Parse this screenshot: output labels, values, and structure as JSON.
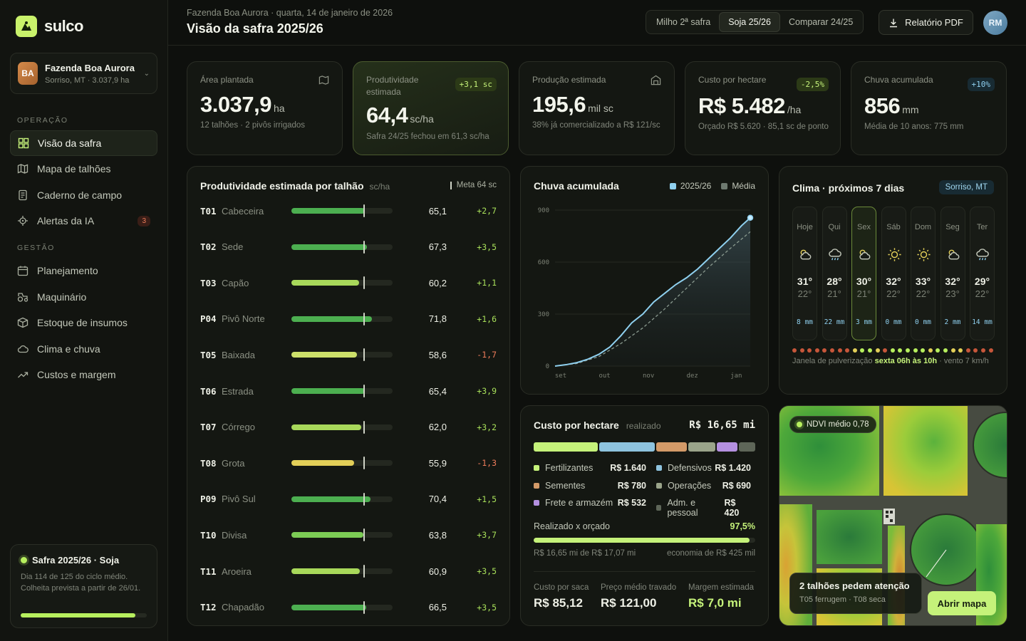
{
  "brand": {
    "name": "sulco"
  },
  "farm": {
    "initials": "BA",
    "name": "Fazenda Boa Aurora",
    "sub": "Sorriso, MT · 3.037,9 ha"
  },
  "nav": {
    "section_ops": "OPERAÇÃO",
    "section_mgmt": "GESTÃO",
    "items": [
      {
        "label": "Visão da safra",
        "icon": "grid-icon"
      },
      {
        "label": "Mapa de talhões",
        "icon": "map-icon"
      },
      {
        "label": "Caderno de campo",
        "icon": "notebook-icon"
      },
      {
        "label": "Alertas da IA",
        "icon": "target-icon",
        "badge": "3"
      },
      {
        "label": "Planejamento",
        "icon": "calendar-icon"
      },
      {
        "label": "Maquinário",
        "icon": "tractor-icon"
      },
      {
        "label": "Estoque de insumos",
        "icon": "box-icon"
      },
      {
        "label": "Clima e chuva",
        "icon": "cloud-icon"
      },
      {
        "label": "Custos e margem",
        "icon": "trend-icon"
      }
    ]
  },
  "season": {
    "title": "Safra 2025/26 · Soja",
    "line1": "Dia 114 de 125 do ciclo médio.",
    "line2": "Colheita prevista a partir de 26/01.",
    "progress": 0.912
  },
  "header": {
    "crumb": "Fazenda Boa Aurora · quarta, 14 de janeiro de 2026",
    "title": "Visão da safra 2025/26",
    "tabs": [
      "Milho 2ª safra",
      "Soja 25/26",
      "Comparar 24/25"
    ],
    "active_tab": 1,
    "pdf_label": "Relatório PDF",
    "user_initials": "RM"
  },
  "kpis": [
    {
      "label": "Área plantada",
      "value": "3.037,9",
      "unit": "ha",
      "note": "12 talhões · 2 pivôs irrigados",
      "icon": "map-icon"
    },
    {
      "label": "Produtividade estimada",
      "value": "64,4",
      "unit": "sc/ha",
      "note": "Safra 24/25 fechou em 61,3 sc/ha",
      "badge": "+3,1 sc"
    },
    {
      "label": "Produção estimada",
      "value": "195,6",
      "unit": "mil sc",
      "note": "38% já comercializado a R$ 121/sc",
      "icon": "warehouse-icon"
    },
    {
      "label": "Custo por hectare",
      "value": "R$ 5.482",
      "unit": "/ha",
      "note": "Orçado R$ 5.620 · 85,1 sc de ponto",
      "badge": "-2,5%"
    },
    {
      "label": "Chuva acumulada",
      "value": "856",
      "unit": "mm",
      "note": "Média de 10 anos: 775 mm",
      "badge": "+10%"
    }
  ],
  "productivity": {
    "title": "Produtividade estimada por talhão",
    "unit": "sc/ha",
    "meta_label": "Meta 64 sc",
    "meta": 64,
    "scale_max": 90,
    "rows": [
      {
        "code": "T01",
        "name": "Cabeceira",
        "value": "65,1",
        "num": 65.1,
        "delta": "+2,7",
        "color": "#4caf50"
      },
      {
        "code": "T02",
        "name": "Sede",
        "value": "67,3",
        "num": 67.3,
        "delta": "+3,5",
        "color": "#4caf50"
      },
      {
        "code": "T03",
        "name": "Capão",
        "value": "60,2",
        "num": 60.2,
        "delta": "+1,1",
        "color": "#a8d85a"
      },
      {
        "code": "P04",
        "name": "Pivô Norte",
        "value": "71,8",
        "num": 71.8,
        "delta": "+1,6",
        "color": "#4caf50"
      },
      {
        "code": "T05",
        "name": "Baixada",
        "value": "58,6",
        "num": 58.6,
        "delta": "-1,7",
        "color": "#cde06a"
      },
      {
        "code": "T06",
        "name": "Estrada",
        "value": "65,4",
        "num": 65.4,
        "delta": "+3,9",
        "color": "#4caf50"
      },
      {
        "code": "T07",
        "name": "Córrego",
        "value": "62,0",
        "num": 62.0,
        "delta": "+3,2",
        "color": "#a8d85a"
      },
      {
        "code": "T08",
        "name": "Grota",
        "value": "55,9",
        "num": 55.9,
        "delta": "-1,3",
        "color": "#e3cf58"
      },
      {
        "code": "P09",
        "name": "Pivô Sul",
        "value": "70,4",
        "num": 70.4,
        "delta": "+1,5",
        "color": "#4caf50"
      },
      {
        "code": "T10",
        "name": "Divisa",
        "value": "63,8",
        "num": 63.8,
        "delta": "+3,7",
        "color": "#7ccc55"
      },
      {
        "code": "T11",
        "name": "Aroeira",
        "value": "60,9",
        "num": 60.9,
        "delta": "+3,5",
        "color": "#a8d85a"
      },
      {
        "code": "T12",
        "name": "Chapadão",
        "value": "66,5",
        "num": 66.5,
        "delta": "+3,5",
        "color": "#4caf50"
      }
    ]
  },
  "chart_data": {
    "type": "area",
    "title": "Chuva acumulada",
    "legend": [
      "2025/26",
      "Média"
    ],
    "x_labels": [
      "set",
      "out",
      "nov",
      "dez",
      "jan"
    ],
    "y_ticks": [
      "900",
      "600",
      "300",
      "0"
    ],
    "ylim": [
      0,
      900
    ],
    "series": [
      {
        "name": "2025/26",
        "color": "#8fd0ef",
        "x": [
          0,
          0.25,
          0.5,
          0.75,
          1,
          1.25,
          1.5,
          1.75,
          2,
          2.25,
          2.5,
          2.75,
          3,
          3.25,
          3.5,
          3.75,
          4,
          4.25,
          4.45
        ],
        "values": [
          0,
          8,
          20,
          40,
          68,
          110,
          175,
          250,
          300,
          370,
          420,
          470,
          510,
          560,
          620,
          680,
          740,
          810,
          856
        ]
      },
      {
        "name": "Média",
        "color": "#8a9a8f",
        "x": [
          0,
          0.5,
          1,
          1.5,
          2,
          2.5,
          3,
          3.5,
          4,
          4.45
        ],
        "values": [
          0,
          15,
          55,
          130,
          220,
          330,
          450,
          570,
          680,
          775
        ]
      }
    ]
  },
  "weather": {
    "title": "Clima · próximos 7 dias",
    "location": "Sorriso, MT",
    "days": [
      {
        "name": "Hoje",
        "max": "31°",
        "min": "22°",
        "rain": "8 mm",
        "icon": "partly-cloudy-icon"
      },
      {
        "name": "Qui",
        "max": "28°",
        "min": "21°",
        "rain": "22 mm",
        "icon": "rain-icon"
      },
      {
        "name": "Sex",
        "max": "30°",
        "min": "21°",
        "rain": "3 mm",
        "icon": "partly-cloudy-icon"
      },
      {
        "name": "Sáb",
        "max": "32°",
        "min": "22°",
        "rain": "0 mm",
        "icon": "sun-icon"
      },
      {
        "name": "Dom",
        "max": "33°",
        "min": "22°",
        "rain": "0 mm",
        "icon": "sun-icon"
      },
      {
        "name": "Seg",
        "max": "32°",
        "min": "23°",
        "rain": "2 mm",
        "icon": "partly-cloudy-icon"
      },
      {
        "name": "Ter",
        "max": "29°",
        "min": "22°",
        "rain": "14 mm",
        "icon": "rain-icon"
      }
    ],
    "selected": 2,
    "spray_prefix": "Janela de pulverização",
    "spray_window": "sexta 06h às 10h",
    "spray_suffix": "· vento 7 km/h",
    "dots": [
      "r",
      "r",
      "r",
      "r",
      "r",
      "r",
      "r",
      "r",
      "y",
      "g",
      "g",
      "y",
      "r",
      "g",
      "g",
      "g",
      "g",
      "g",
      "y",
      "g",
      "g",
      "y",
      "y",
      "r",
      "r",
      "r",
      "r"
    ]
  },
  "cost": {
    "title": "Custo por hectare",
    "sub": "realizado",
    "total": "R$ 16,65 mi",
    "items": [
      {
        "label": "Fertilizantes",
        "value": "R$ 1.640",
        "color": "#c5f27a",
        "num": 1640
      },
      {
        "label": "Defensivos",
        "value": "R$ 1.420",
        "color": "#8ec3de",
        "num": 1420
      },
      {
        "label": "Sementes",
        "value": "R$ 780",
        "color": "#d39a68",
        "num": 780
      },
      {
        "label": "Operações",
        "value": "R$ 690",
        "color": "#9aa48a",
        "num": 690
      },
      {
        "label": "Frete e armazém",
        "value": "R$ 532",
        "color": "#b490e0",
        "num": 532
      },
      {
        "label": "Adm. e pessoal",
        "value": "R$ 420",
        "color": "#5e6658",
        "num": 420
      }
    ],
    "budget_label": "Realizado x orçado",
    "budget_pct": "97,5%",
    "budget_frac": 0.975,
    "budget_left": "R$ 16,65 mi de R$ 17,07 mi",
    "budget_right": "economia de R$ 425 mil",
    "stats": [
      {
        "label": "Custo por saca",
        "value": "R$ 85,12"
      },
      {
        "label": "Preço médio travado",
        "value": "R$ 121,00"
      },
      {
        "label": "Margem estimada",
        "value": "R$ 7,0 mi"
      }
    ]
  },
  "map": {
    "ndvi": "NDVI médio 0,78",
    "alert_title": "2 talhões pedem atenção",
    "alert_sub": "T05 ferrugem · T08 seca",
    "button": "Abrir mapa"
  }
}
